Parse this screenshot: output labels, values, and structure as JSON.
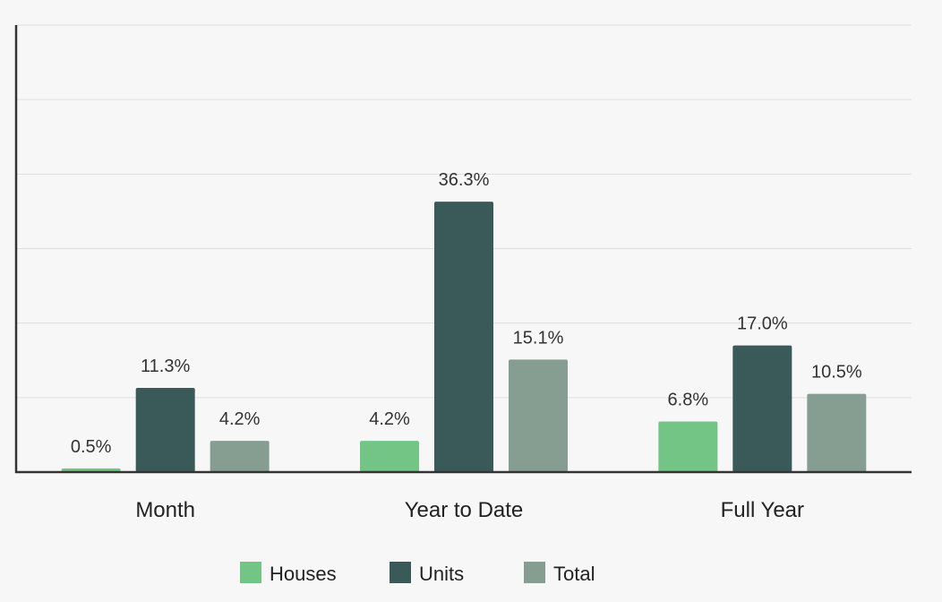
{
  "chart_data": {
    "type": "bar",
    "categories": [
      "Month",
      "Year to Date",
      "Full Year"
    ],
    "series": [
      {
        "name": "Houses",
        "color": "#72c585",
        "values": [
          0.5,
          4.2,
          6.8
        ]
      },
      {
        "name": "Units",
        "color": "#3a5a5a",
        "values": [
          11.3,
          36.3,
          17.0
        ]
      },
      {
        "name": "Total",
        "color": "#869e91",
        "values": [
          4.2,
          15.1,
          10.5
        ]
      }
    ],
    "value_labels": [
      [
        "0.5%",
        "4.2%",
        "6.8%"
      ],
      [
        "11.3%",
        "36.3%",
        "17.0%"
      ],
      [
        "4.2%",
        "15.1%",
        "10.5%"
      ]
    ],
    "ylim": [
      0,
      60
    ],
    "grid": true,
    "legend_position": "bottom"
  }
}
